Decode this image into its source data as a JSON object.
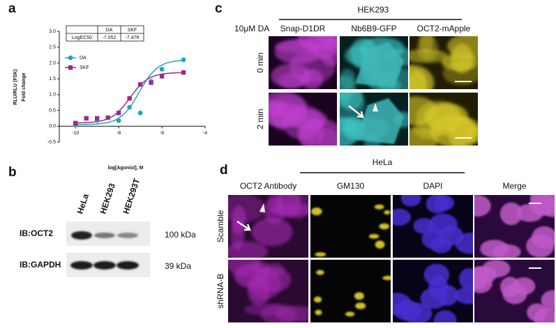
{
  "chart_data": {
    "type": "scatter",
    "panel_label": "a",
    "xlabel": "log[Agonist], M",
    "ylabel": [
      "RLU/RLU (FSK)",
      "Fold change"
    ],
    "table": {
      "columns": [
        "DA",
        "SKF"
      ],
      "rows": [
        [
          "LogEC50",
          "-7.052",
          "-7.476"
        ]
      ]
    },
    "xlim": [
      -10.75,
      -4
    ],
    "xticks": [
      -10,
      -8,
      -6,
      -4
    ],
    "ylim": [
      -0.5,
      3
    ],
    "yticks": [
      -0.5,
      {
        "value": 0,
        "label": "0.0"
      },
      0.5,
      {
        "value": 1,
        "label": "1.0"
      },
      1.5,
      {
        "value": 2,
        "label": "2.0"
      },
      2.5,
      {
        "value": 3,
        "label": "3.0"
      }
    ],
    "legend": "upper left",
    "series": [
      {
        "name": "DA",
        "color": "#1ea7b3",
        "marker": "circle",
        "x": [
          -10,
          -9,
          -8,
          -7.5,
          -7,
          -6.5,
          -6,
          -5
        ],
        "values": [
          0.05,
          0.18,
          0.18,
          0.6,
          0.42,
          1.42,
          1.8,
          2.1
        ]
      },
      {
        "name": "SKF",
        "color": "#9b2a8e",
        "marker": "square",
        "x": [
          -10,
          -9.5,
          -9,
          -8.5,
          -8,
          -7.5,
          -7,
          -6.5,
          -6,
          -5
        ],
        "values": [
          0.1,
          0.25,
          0.25,
          0.27,
          0.42,
          0.88,
          1.32,
          1.38,
          1.58,
          1.7
        ]
      }
    ]
  },
  "figure": {
    "b": {
      "panel_label": "b",
      "lanes": [
        "HeLa",
        "HEK293",
        "HEK293T"
      ],
      "blots": [
        "IB:OCT2",
        "IB:GAPDH"
      ],
      "sizes": [
        "100 kDa",
        "39 kDa"
      ]
    },
    "c": {
      "panel_label": "c",
      "group": "HEK293",
      "treatment": "10μM DA",
      "columns": [
        "Snap-D1DR",
        "Nb6B9-GFP",
        "OCT2-mApple"
      ],
      "rows": [
        "0 min",
        "2 min"
      ]
    },
    "d": {
      "panel_label": "d",
      "group": "HeLa",
      "columns": [
        "OCT2 Antibody",
        "GM130",
        "DAPI",
        "Merge"
      ],
      "rows": [
        "Scamble",
        "shRNA-B"
      ]
    }
  }
}
